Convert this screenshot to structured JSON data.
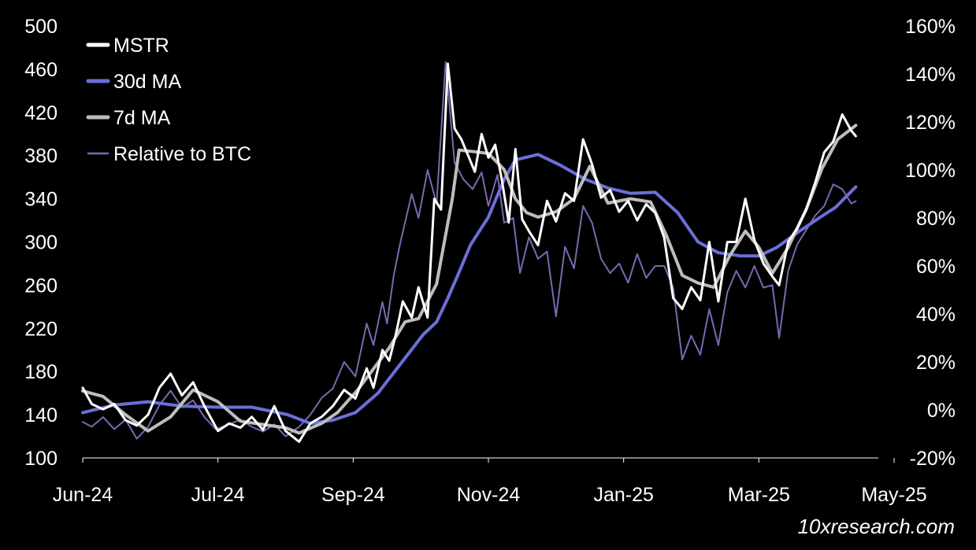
{
  "chart_data": {
    "type": "line",
    "title": "",
    "watermark": "10xresearch.com",
    "legend_position": "top-left",
    "grid": false,
    "x_axis": {
      "range": [
        "2024-06-01",
        "2025-05-20"
      ],
      "ticks": [
        {
          "date": "2024-06-01",
          "label": "Jun-24"
        },
        {
          "date": "2024-07-31",
          "label": "Jul-24"
        },
        {
          "date": "2024-09-29",
          "label": "Sep-24"
        },
        {
          "date": "2024-11-28",
          "label": "Nov-24"
        },
        {
          "date": "2025-01-27",
          "label": "Jan-25"
        },
        {
          "date": "2025-03-28",
          "label": "Mar-25"
        },
        {
          "date": "2025-05-27",
          "label": "May-25"
        }
      ]
    },
    "y_axis_left": {
      "range": [
        100,
        500
      ],
      "ticks": [
        100,
        140,
        180,
        220,
        260,
        300,
        340,
        380,
        420,
        460,
        500
      ],
      "tick_labels": [
        "100",
        "140",
        "180",
        "220",
        "260",
        "300",
        "340",
        "380",
        "420",
        "460",
        "500"
      ]
    },
    "y_axis_right": {
      "range": [
        -20,
        160
      ],
      "ticks": [
        -20,
        0,
        20,
        40,
        60,
        80,
        100,
        120,
        140,
        160
      ],
      "tick_labels": [
        "-20%",
        "0%",
        "20%",
        "40%",
        "60%",
        "80%",
        "100%",
        "120%",
        "140%",
        "160%"
      ]
    },
    "series": [
      {
        "name": "Relative to BTC",
        "axis": "right",
        "color": "#7b68b0",
        "stroke_width": 2,
        "points": [
          [
            "2024-06-01",
            -5
          ],
          [
            "2024-06-05",
            -7
          ],
          [
            "2024-06-10",
            -3
          ],
          [
            "2024-06-15",
            -8
          ],
          [
            "2024-06-20",
            -4
          ],
          [
            "2024-06-25",
            -12
          ],
          [
            "2024-06-30",
            -7
          ],
          [
            "2024-07-05",
            2
          ],
          [
            "2024-07-10",
            8
          ],
          [
            "2024-07-15",
            1
          ],
          [
            "2024-07-20",
            4
          ],
          [
            "2024-07-25",
            -3
          ],
          [
            "2024-07-30",
            -8
          ],
          [
            "2024-08-05",
            -6
          ],
          [
            "2024-08-10",
            -4
          ],
          [
            "2024-08-15",
            -7
          ],
          [
            "2024-08-20",
            -9
          ],
          [
            "2024-08-25",
            -6
          ],
          [
            "2024-08-30",
            -11
          ],
          [
            "2024-09-05",
            -7
          ],
          [
            "2024-09-10",
            -2
          ],
          [
            "2024-09-15",
            5
          ],
          [
            "2024-09-20",
            9
          ],
          [
            "2024-09-25",
            20
          ],
          [
            "2024-09-30",
            14
          ],
          [
            "2024-10-05",
            36
          ],
          [
            "2024-10-08",
            27
          ],
          [
            "2024-10-12",
            45
          ],
          [
            "2024-10-14",
            36
          ],
          [
            "2024-10-17",
            56
          ],
          [
            "2024-10-20",
            70
          ],
          [
            "2024-10-25",
            90
          ],
          [
            "2024-10-28",
            80
          ],
          [
            "2024-11-01",
            100
          ],
          [
            "2024-11-05",
            86
          ],
          [
            "2024-11-09",
            145
          ],
          [
            "2024-11-13",
            103
          ],
          [
            "2024-11-17",
            96
          ],
          [
            "2024-11-21",
            92
          ],
          [
            "2024-11-25",
            99
          ],
          [
            "2024-11-28",
            85
          ],
          [
            "2024-12-02",
            98
          ],
          [
            "2024-12-05",
            78
          ],
          [
            "2024-12-09",
            80
          ],
          [
            "2024-12-12",
            57
          ],
          [
            "2024-12-16",
            72
          ],
          [
            "2024-12-20",
            63
          ],
          [
            "2024-12-24",
            66
          ],
          [
            "2024-12-28",
            39
          ],
          [
            "2025-01-01",
            68
          ],
          [
            "2025-01-05",
            59
          ],
          [
            "2025-01-09",
            85
          ],
          [
            "2025-01-13",
            78
          ],
          [
            "2025-01-17",
            63
          ],
          [
            "2025-01-21",
            57
          ],
          [
            "2025-01-25",
            61
          ],
          [
            "2025-01-29",
            53
          ],
          [
            "2025-02-02",
            65
          ],
          [
            "2025-02-06",
            55
          ],
          [
            "2025-02-10",
            60
          ],
          [
            "2025-02-14",
            60
          ],
          [
            "2025-02-18",
            51
          ],
          [
            "2025-02-22",
            21
          ],
          [
            "2025-02-26",
            31
          ],
          [
            "2025-03-02",
            23
          ],
          [
            "2025-03-06",
            42
          ],
          [
            "2025-03-10",
            27
          ],
          [
            "2025-03-14",
            49
          ],
          [
            "2025-03-18",
            58
          ],
          [
            "2025-03-22",
            51
          ],
          [
            "2025-03-26",
            60
          ],
          [
            "2025-03-30",
            51
          ],
          [
            "2025-04-03",
            52
          ],
          [
            "2025-04-06",
            30
          ],
          [
            "2025-04-10",
            58
          ],
          [
            "2025-04-14",
            69
          ],
          [
            "2025-04-18",
            75
          ],
          [
            "2025-04-22",
            81
          ],
          [
            "2025-04-26",
            85
          ],
          [
            "2025-04-30",
            94
          ],
          [
            "2025-05-04",
            92
          ],
          [
            "2025-05-08",
            86
          ],
          [
            "2025-05-10",
            87
          ]
        ]
      },
      {
        "name": "30d MA",
        "axis": "left",
        "color": "#6b6fd9",
        "stroke_width": 4,
        "points": [
          [
            "2024-06-01",
            142
          ],
          [
            "2024-06-15",
            149
          ],
          [
            "2024-06-30",
            152
          ],
          [
            "2024-07-15",
            148
          ],
          [
            "2024-07-31",
            147
          ],
          [
            "2024-08-15",
            147
          ],
          [
            "2024-08-31",
            140
          ],
          [
            "2024-09-10",
            132
          ],
          [
            "2024-09-20",
            135
          ],
          [
            "2024-09-30",
            142
          ],
          [
            "2024-10-10",
            160
          ],
          [
            "2024-10-20",
            187
          ],
          [
            "2024-10-30",
            214
          ],
          [
            "2024-11-05",
            226
          ],
          [
            "2024-11-10",
            248
          ],
          [
            "2024-11-15",
            272
          ],
          [
            "2024-11-20",
            297
          ],
          [
            "2024-11-28",
            323
          ],
          [
            "2024-12-05",
            358
          ],
          [
            "2024-12-10",
            376
          ],
          [
            "2024-12-20",
            381
          ],
          [
            "2024-12-30",
            371
          ],
          [
            "2025-01-10",
            358
          ],
          [
            "2025-01-20",
            350
          ],
          [
            "2025-01-30",
            345
          ],
          [
            "2025-02-10",
            346
          ],
          [
            "2025-02-20",
            327
          ],
          [
            "2025-03-01",
            300
          ],
          [
            "2025-03-10",
            290
          ],
          [
            "2025-03-20",
            287
          ],
          [
            "2025-03-28",
            287
          ],
          [
            "2025-04-05",
            295
          ],
          [
            "2025-04-15",
            310
          ],
          [
            "2025-04-25",
            324
          ],
          [
            "2025-05-01",
            332
          ],
          [
            "2025-05-10",
            351
          ]
        ]
      },
      {
        "name": "7d MA",
        "axis": "left",
        "color": "#bdbdbd",
        "stroke_width": 4,
        "points": [
          [
            "2024-06-01",
            162
          ],
          [
            "2024-06-10",
            157
          ],
          [
            "2024-06-20",
            140
          ],
          [
            "2024-06-30",
            125
          ],
          [
            "2024-07-10",
            138
          ],
          [
            "2024-07-20",
            163
          ],
          [
            "2024-07-31",
            152
          ],
          [
            "2024-08-10",
            134
          ],
          [
            "2024-08-20",
            131
          ],
          [
            "2024-08-30",
            128
          ],
          [
            "2024-09-05",
            123
          ],
          [
            "2024-09-15",
            132
          ],
          [
            "2024-09-22",
            142
          ],
          [
            "2024-10-01",
            163
          ],
          [
            "2024-10-10",
            188
          ],
          [
            "2024-10-15",
            202
          ],
          [
            "2024-10-22",
            226
          ],
          [
            "2024-10-28",
            229
          ],
          [
            "2024-11-05",
            261
          ],
          [
            "2024-11-12",
            340
          ],
          [
            "2024-11-15",
            385
          ],
          [
            "2024-11-20",
            384
          ],
          [
            "2024-11-28",
            382
          ],
          [
            "2024-12-05",
            367
          ],
          [
            "2024-12-10",
            340
          ],
          [
            "2024-12-15",
            327
          ],
          [
            "2024-12-20",
            323
          ],
          [
            "2024-12-28",
            328
          ],
          [
            "2025-01-05",
            340
          ],
          [
            "2025-01-12",
            370
          ],
          [
            "2025-01-20",
            336
          ],
          [
            "2025-01-30",
            340
          ],
          [
            "2025-02-08",
            337
          ],
          [
            "2025-02-15",
            306
          ],
          [
            "2025-02-22",
            269
          ],
          [
            "2025-03-01",
            262
          ],
          [
            "2025-03-08",
            258
          ],
          [
            "2025-03-15",
            287
          ],
          [
            "2025-03-22",
            310
          ],
          [
            "2025-03-28",
            295
          ],
          [
            "2025-04-03",
            271
          ],
          [
            "2025-04-10",
            295
          ],
          [
            "2025-04-18",
            330
          ],
          [
            "2025-04-25",
            368
          ],
          [
            "2025-05-02",
            395
          ],
          [
            "2025-05-10",
            408
          ]
        ]
      },
      {
        "name": "MSTR",
        "axis": "left",
        "color": "#ffffff",
        "stroke_width": 3,
        "points": [
          [
            "2024-06-01",
            165
          ],
          [
            "2024-06-05",
            150
          ],
          [
            "2024-06-10",
            145
          ],
          [
            "2024-06-15",
            150
          ],
          [
            "2024-06-20",
            135
          ],
          [
            "2024-06-25",
            130
          ],
          [
            "2024-06-30",
            140
          ],
          [
            "2024-07-05",
            165
          ],
          [
            "2024-07-10",
            178
          ],
          [
            "2024-07-15",
            158
          ],
          [
            "2024-07-20",
            170
          ],
          [
            "2024-07-25",
            148
          ],
          [
            "2024-07-31",
            125
          ],
          [
            "2024-08-05",
            132
          ],
          [
            "2024-08-10",
            128
          ],
          [
            "2024-08-15",
            138
          ],
          [
            "2024-08-20",
            126
          ],
          [
            "2024-08-25",
            148
          ],
          [
            "2024-08-30",
            125
          ],
          [
            "2024-09-05",
            115
          ],
          [
            "2024-09-10",
            132
          ],
          [
            "2024-09-15",
            138
          ],
          [
            "2024-09-20",
            148
          ],
          [
            "2024-09-25",
            163
          ],
          [
            "2024-09-30",
            155
          ],
          [
            "2024-10-05",
            183
          ],
          [
            "2024-10-08",
            165
          ],
          [
            "2024-10-12",
            200
          ],
          [
            "2024-10-15",
            190
          ],
          [
            "2024-10-18",
            215
          ],
          [
            "2024-10-21",
            245
          ],
          [
            "2024-10-25",
            230
          ],
          [
            "2024-10-28",
            258
          ],
          [
            "2024-11-01",
            230
          ],
          [
            "2024-11-04",
            340
          ],
          [
            "2024-11-07",
            330
          ],
          [
            "2024-11-10",
            465
          ],
          [
            "2024-11-13",
            405
          ],
          [
            "2024-11-16",
            395
          ],
          [
            "2024-11-19",
            380
          ],
          [
            "2024-11-22",
            365
          ],
          [
            "2024-11-25",
            400
          ],
          [
            "2024-11-28",
            378
          ],
          [
            "2024-12-01",
            390
          ],
          [
            "2024-12-04",
            357
          ],
          [
            "2024-12-07",
            318
          ],
          [
            "2024-12-10",
            386
          ],
          [
            "2024-12-13",
            321
          ],
          [
            "2024-12-16",
            310
          ],
          [
            "2024-12-20",
            297
          ],
          [
            "2024-12-24",
            338
          ],
          [
            "2024-12-28",
            319
          ],
          [
            "2025-01-01",
            345
          ],
          [
            "2025-01-05",
            338
          ],
          [
            "2025-01-09",
            395
          ],
          [
            "2025-01-13",
            372
          ],
          [
            "2025-01-17",
            341
          ],
          [
            "2025-01-21",
            348
          ],
          [
            "2025-01-25",
            328
          ],
          [
            "2025-01-29",
            338
          ],
          [
            "2025-02-02",
            320
          ],
          [
            "2025-02-06",
            335
          ],
          [
            "2025-02-10",
            327
          ],
          [
            "2025-02-14",
            304
          ],
          [
            "2025-02-18",
            248
          ],
          [
            "2025-02-22",
            238
          ],
          [
            "2025-02-26",
            258
          ],
          [
            "2025-03-02",
            246
          ],
          [
            "2025-03-06",
            300
          ],
          [
            "2025-03-10",
            245
          ],
          [
            "2025-03-14",
            300
          ],
          [
            "2025-03-18",
            300
          ],
          [
            "2025-03-22",
            340
          ],
          [
            "2025-03-26",
            302
          ],
          [
            "2025-03-30",
            280
          ],
          [
            "2025-04-03",
            268
          ],
          [
            "2025-04-06",
            260
          ],
          [
            "2025-04-10",
            300
          ],
          [
            "2025-04-14",
            313
          ],
          [
            "2025-04-18",
            330
          ],
          [
            "2025-04-22",
            355
          ],
          [
            "2025-04-26",
            383
          ],
          [
            "2025-04-30",
            393
          ],
          [
            "2025-05-04",
            418
          ],
          [
            "2025-05-08",
            403
          ],
          [
            "2025-05-10",
            398
          ]
        ]
      }
    ]
  }
}
